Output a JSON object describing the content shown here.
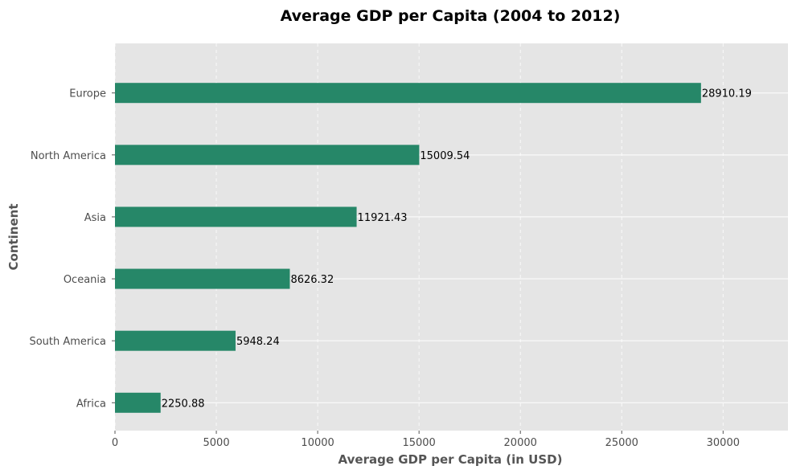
{
  "chart_data": {
    "type": "bar",
    "orientation": "horizontal",
    "title": "Average GDP per Capita (2004 to 2012)",
    "xlabel": "Average GDP per Capita (in USD)",
    "ylabel": "Continent",
    "categories": [
      "Africa",
      "South America",
      "Oceania",
      "Asia",
      "North America",
      "Europe"
    ],
    "values": [
      2250.88,
      5948.24,
      8626.32,
      11921.43,
      15009.54,
      28910.19
    ],
    "value_labels": [
      "2250.88",
      "5948.24",
      "8626.32",
      "11921.43",
      "15009.54",
      "28910.19"
    ],
    "xlim": [
      0,
      33200
    ],
    "xticks": [
      0,
      5000,
      10000,
      15000,
      20000,
      25000,
      30000
    ],
    "xtick_labels": [
      "0",
      "5000",
      "10000",
      "15000",
      "20000",
      "25000",
      "30000"
    ],
    "grid": true,
    "colors": {
      "bar": "#268768",
      "plot_background": "#e5e5e5",
      "grid": "#ffffff"
    }
  }
}
